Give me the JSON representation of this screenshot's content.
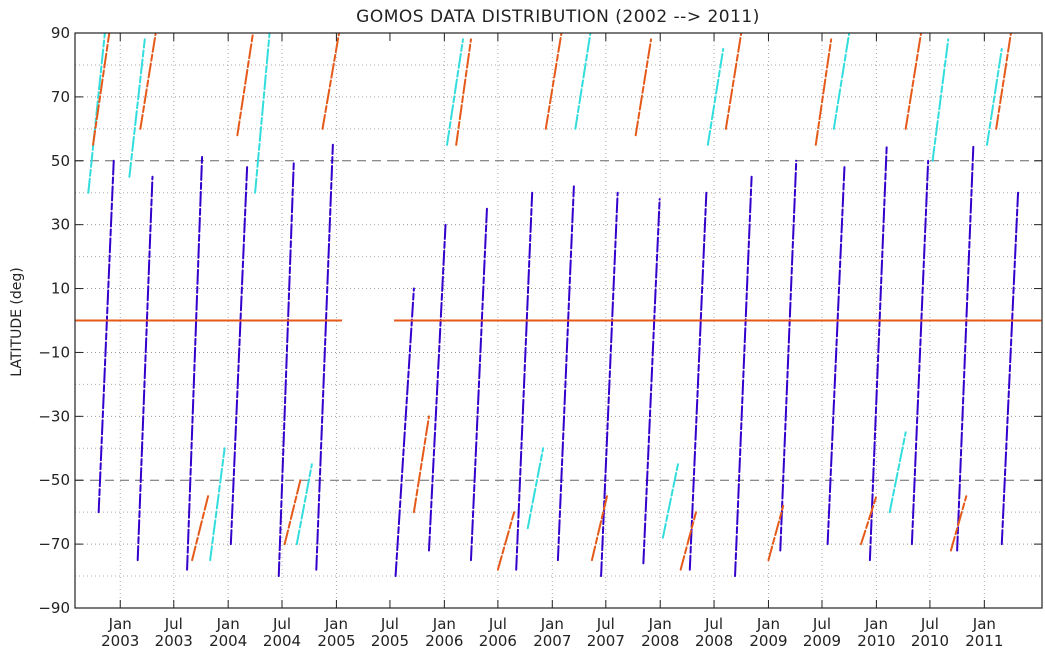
{
  "chart_data": {
    "type": "scatter",
    "title": "GOMOS DATA DISTRIBUTION (2002 --> 2011)",
    "xlabel": "",
    "ylabel": "LATITUDE (deg)",
    "ylim": [
      -90,
      90
    ],
    "yticks": [
      -90,
      -70,
      -50,
      -30,
      -10,
      10,
      30,
      50,
      70,
      90
    ],
    "xlim": [
      "2002-08-01",
      "2011-07-15"
    ],
    "xticks": [
      {
        "date": "2003-01-01",
        "month": "Jan",
        "year": "2003"
      },
      {
        "date": "2003-07-01",
        "month": "Jul",
        "year": "2003"
      },
      {
        "date": "2004-01-01",
        "month": "Jan",
        "year": "2004"
      },
      {
        "date": "2004-07-01",
        "month": "Jul",
        "year": "2004"
      },
      {
        "date": "2005-01-01",
        "month": "Jan",
        "year": "2005"
      },
      {
        "date": "2005-07-01",
        "month": "Jul",
        "year": "2005"
      },
      {
        "date": "2006-01-01",
        "month": "Jan",
        "year": "2006"
      },
      {
        "date": "2006-07-01",
        "month": "Jul",
        "year": "2006"
      },
      {
        "date": "2007-01-01",
        "month": "Jan",
        "year": "2007"
      },
      {
        "date": "2007-07-01",
        "month": "Jul",
        "year": "2007"
      },
      {
        "date": "2008-01-01",
        "month": "Jan",
        "year": "2008"
      },
      {
        "date": "2008-07-01",
        "month": "Jul",
        "year": "2008"
      },
      {
        "date": "2009-01-01",
        "month": "Jan",
        "year": "2009"
      },
      {
        "date": "2009-07-01",
        "month": "Jul",
        "year": "2009"
      },
      {
        "date": "2010-01-01",
        "month": "Jan",
        "year": "2010"
      },
      {
        "date": "2010-07-01",
        "month": "Jul",
        "year": "2010"
      },
      {
        "date": "2011-01-01",
        "month": "Jan",
        "year": "2011"
      }
    ],
    "grid": true,
    "dashed_reference_lines": [
      50,
      0,
      -50
    ],
    "data_gaps": [
      {
        "from": "2005-01-20",
        "to": "2005-07-15"
      }
    ],
    "series": [
      {
        "color": "#3300cc",
        "traces": [
          {
            "x": [
              "2002-10-20",
              "2002-12-10"
            ],
            "y": [
              -60,
              50
            ]
          },
          {
            "x": [
              "2003-03-01",
              "2003-04-20"
            ],
            "y": [
              -75,
              45
            ]
          },
          {
            "x": [
              "2003-08-15",
              "2003-10-05"
            ],
            "y": [
              -78,
              52
            ]
          },
          {
            "x": [
              "2004-01-10",
              "2004-03-05"
            ],
            "y": [
              -70,
              48
            ]
          },
          {
            "x": [
              "2004-06-20",
              "2004-08-10"
            ],
            "y": [
              -80,
              50
            ]
          },
          {
            "x": [
              "2004-10-25",
              "2004-12-20"
            ],
            "y": [
              -78,
              55
            ]
          },
          {
            "x": [
              "2005-07-20",
              "2005-09-20"
            ],
            "y": [
              -80,
              10
            ]
          },
          {
            "x": [
              "2005-11-10",
              "2006-01-05"
            ],
            "y": [
              -72,
              30
            ]
          },
          {
            "x": [
              "2006-04-01",
              "2006-05-25"
            ],
            "y": [
              -75,
              35
            ]
          },
          {
            "x": [
              "2006-09-01",
              "2006-10-25"
            ],
            "y": [
              -78,
              40
            ]
          },
          {
            "x": [
              "2007-01-20",
              "2007-03-15"
            ],
            "y": [
              -75,
              42
            ]
          },
          {
            "x": [
              "2007-06-15",
              "2007-08-10"
            ],
            "y": [
              -80,
              40
            ]
          },
          {
            "x": [
              "2007-11-05",
              "2007-12-30"
            ],
            "y": [
              -76,
              38
            ]
          },
          {
            "x": [
              "2008-04-10",
              "2008-06-05"
            ],
            "y": [
              -78,
              40
            ]
          },
          {
            "x": [
              "2008-09-10",
              "2008-11-05"
            ],
            "y": [
              -80,
              45
            ]
          },
          {
            "x": [
              "2009-02-10",
              "2009-04-05"
            ],
            "y": [
              -72,
              50
            ]
          },
          {
            "x": [
              "2009-07-20",
              "2009-09-15"
            ],
            "y": [
              -70,
              48
            ]
          },
          {
            "x": [
              "2009-12-10",
              "2010-02-05"
            ],
            "y": [
              -75,
              55
            ]
          },
          {
            "x": [
              "2010-05-01",
              "2010-06-25"
            ],
            "y": [
              -70,
              50
            ]
          },
          {
            "x": [
              "2010-10-01",
              "2010-11-25"
            ],
            "y": [
              -72,
              55
            ]
          },
          {
            "x": [
              "2011-03-01",
              "2011-04-25"
            ],
            "y": [
              -70,
              40
            ]
          }
        ]
      },
      {
        "color": "#33dddd",
        "traces": [
          {
            "x": [
              "2002-09-15",
              "2002-11-10"
            ],
            "y": [
              40,
              90
            ]
          },
          {
            "x": [
              "2003-02-01",
              "2003-03-25"
            ],
            "y": [
              45,
              88
            ]
          },
          {
            "x": [
              "2003-11-01",
              "2003-12-20"
            ],
            "y": [
              -75,
              -40
            ]
          },
          {
            "x": [
              "2004-04-01",
              "2004-05-20"
            ],
            "y": [
              40,
              90
            ]
          },
          {
            "x": [
              "2004-08-20",
              "2004-10-10"
            ],
            "y": [
              -70,
              -45
            ]
          },
          {
            "x": [
              "2006-01-10",
              "2006-03-05"
            ],
            "y": [
              55,
              88
            ]
          },
          {
            "x": [
              "2006-10-10",
              "2006-12-01"
            ],
            "y": [
              -65,
              -40
            ]
          },
          {
            "x": [
              "2007-03-20",
              "2007-05-10"
            ],
            "y": [
              60,
              90
            ]
          },
          {
            "x": [
              "2008-01-10",
              "2008-03-01"
            ],
            "y": [
              -68,
              -45
            ]
          },
          {
            "x": [
              "2008-06-10",
              "2008-08-01"
            ],
            "y": [
              55,
              85
            ]
          },
          {
            "x": [
              "2009-08-10",
              "2009-10-01"
            ],
            "y": [
              60,
              90
            ]
          },
          {
            "x": [
              "2010-02-15",
              "2010-04-10"
            ],
            "y": [
              -60,
              -35
            ]
          },
          {
            "x": [
              "2010-07-10",
              "2010-09-01"
            ],
            "y": [
              50,
              88
            ]
          },
          {
            "x": [
              "2011-01-10",
              "2011-03-01"
            ],
            "y": [
              55,
              85
            ]
          }
        ]
      },
      {
        "color": "#e55a1a",
        "traces": [
          {
            "x": [
              "2002-08-05",
              "2011-07-10"
            ],
            "y": [
              0,
              0
            ]
          },
          {
            "x": [
              "2002-10-01",
              "2002-11-25"
            ],
            "y": [
              55,
              90
            ]
          },
          {
            "x": [
              "2003-03-10",
              "2003-05-01"
            ],
            "y": [
              60,
              90
            ]
          },
          {
            "x": [
              "2003-09-01",
              "2003-10-25"
            ],
            "y": [
              -75,
              -55
            ]
          },
          {
            "x": [
              "2004-02-01",
              "2004-03-25"
            ],
            "y": [
              58,
              90
            ]
          },
          {
            "x": [
              "2004-07-10",
              "2004-09-01"
            ],
            "y": [
              -70,
              -50
            ]
          },
          {
            "x": [
              "2004-11-15",
              "2005-01-10"
            ],
            "y": [
              60,
              90
            ]
          },
          {
            "x": [
              "2005-09-20",
              "2005-11-10"
            ],
            "y": [
              -60,
              -30
            ]
          },
          {
            "x": [
              "2006-02-10",
              "2006-04-01"
            ],
            "y": [
              55,
              88
            ]
          },
          {
            "x": [
              "2006-07-01",
              "2006-08-25"
            ],
            "y": [
              -78,
              -60
            ]
          },
          {
            "x": [
              "2006-12-10",
              "2007-02-01"
            ],
            "y": [
              60,
              90
            ]
          },
          {
            "x": [
              "2007-05-15",
              "2007-07-05"
            ],
            "y": [
              -75,
              -55
            ]
          },
          {
            "x": [
              "2007-10-10",
              "2007-12-01"
            ],
            "y": [
              58,
              88
            ]
          },
          {
            "x": [
              "2008-03-10",
              "2008-05-01"
            ],
            "y": [
              -78,
              -60
            ]
          },
          {
            "x": [
              "2008-08-10",
              "2008-10-01"
            ],
            "y": [
              60,
              90
            ]
          },
          {
            "x": [
              "2009-01-01",
              "2009-02-20"
            ],
            "y": [
              -75,
              -58
            ]
          },
          {
            "x": [
              "2009-06-10",
              "2009-08-01"
            ],
            "y": [
              55,
              88
            ]
          },
          {
            "x": [
              "2009-11-10",
              "2010-01-01"
            ],
            "y": [
              -70,
              -55
            ]
          },
          {
            "x": [
              "2010-04-10",
              "2010-06-01"
            ],
            "y": [
              60,
              90
            ]
          },
          {
            "x": [
              "2010-09-10",
              "2010-11-01"
            ],
            "y": [
              -72,
              -55
            ]
          },
          {
            "x": [
              "2011-02-10",
              "2011-04-01"
            ],
            "y": [
              60,
              90
            ]
          }
        ]
      }
    ]
  }
}
